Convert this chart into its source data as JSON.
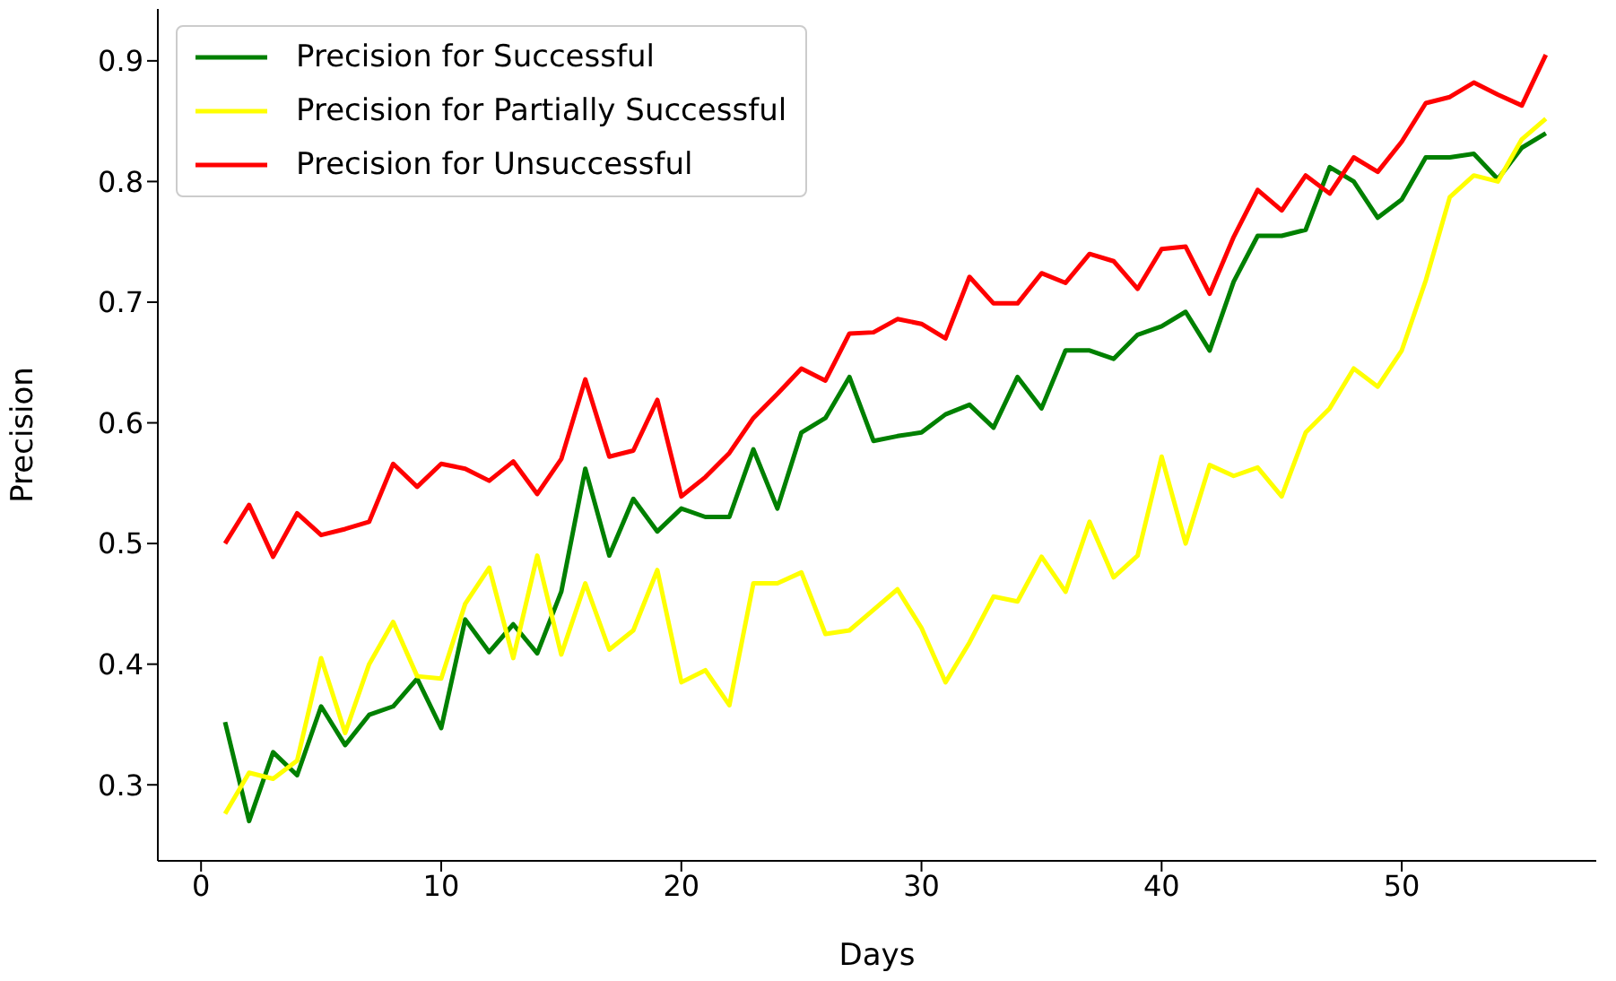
{
  "chart_data": {
    "type": "line",
    "xlabel": "Days",
    "ylabel": "Precision",
    "x": [
      1,
      2,
      3,
      4,
      5,
      6,
      7,
      8,
      9,
      10,
      11,
      12,
      13,
      14,
      15,
      16,
      17,
      18,
      19,
      20,
      21,
      22,
      23,
      24,
      25,
      26,
      27,
      28,
      29,
      30,
      31,
      32,
      33,
      34,
      35,
      36,
      37,
      38,
      39,
      40,
      41,
      42,
      43,
      44,
      45,
      46,
      47,
      48,
      49,
      50,
      51,
      52,
      53,
      54,
      55,
      56
    ],
    "series": [
      {
        "name": "Precision for Successful",
        "color": "#008000",
        "values": [
          0.352,
          0.27,
          0.327,
          0.308,
          0.365,
          0.333,
          0.358,
          0.365,
          0.388,
          0.347,
          0.437,
          0.41,
          0.433,
          0.409,
          0.46,
          0.562,
          0.49,
          0.537,
          0.51,
          0.529,
          0.522,
          0.522,
          0.578,
          0.529,
          0.592,
          0.604,
          0.638,
          0.585,
          0.589,
          0.592,
          0.607,
          0.615,
          0.596,
          0.638,
          0.612,
          0.66,
          0.66,
          0.653,
          0.673,
          0.68,
          0.692,
          0.66,
          0.717,
          0.755,
          0.755,
          0.76,
          0.812,
          0.8,
          0.77,
          0.785,
          0.82,
          0.82,
          0.823,
          0.802,
          0.828,
          0.84
        ]
      },
      {
        "name": "Precision for Partially Successful",
        "color": "#ffff00",
        "values": [
          0.276,
          0.31,
          0.305,
          0.32,
          0.405,
          0.343,
          0.4,
          0.435,
          0.39,
          0.388,
          0.45,
          0.48,
          0.405,
          0.49,
          0.408,
          0.467,
          0.412,
          0.428,
          0.478,
          0.385,
          0.395,
          0.366,
          0.467,
          0.467,
          0.476,
          0.425,
          0.428,
          0.445,
          0.462,
          0.43,
          0.385,
          0.418,
          0.456,
          0.452,
          0.489,
          0.46,
          0.518,
          0.472,
          0.49,
          0.572,
          0.5,
          0.565,
          0.556,
          0.563,
          0.539,
          0.592,
          0.612,
          0.645,
          0.63,
          0.66,
          0.718,
          0.787,
          0.805,
          0.8,
          0.835,
          0.852
        ]
      },
      {
        "name": "Precision for Unsuccessful",
        "color": "#ff0000",
        "values": [
          0.5,
          0.532,
          0.489,
          0.525,
          0.507,
          0.512,
          0.518,
          0.566,
          0.547,
          0.566,
          0.562,
          0.552,
          0.568,
          0.541,
          0.57,
          0.636,
          0.572,
          0.577,
          0.619,
          0.539,
          0.555,
          0.575,
          0.604,
          0.624,
          0.645,
          0.635,
          0.674,
          0.675,
          0.686,
          0.682,
          0.67,
          0.721,
          0.699,
          0.699,
          0.724,
          0.716,
          0.74,
          0.734,
          0.711,
          0.744,
          0.746,
          0.707,
          0.754,
          0.793,
          0.776,
          0.805,
          0.79,
          0.82,
          0.808,
          0.833,
          0.865,
          0.87,
          0.882,
          0.872,
          0.863,
          0.905
        ]
      }
    ],
    "xlim": [
      -1.8,
      58.1
    ],
    "xticks": [
      0,
      10,
      20,
      30,
      40,
      50
    ],
    "ylim": [
      0.237,
      0.943
    ],
    "yticks": [
      0.3,
      0.4,
      0.5,
      0.6,
      0.7,
      0.8,
      0.9
    ],
    "grid": false,
    "legend": "top left",
    "marker": "none",
    "line_style": "solid"
  }
}
